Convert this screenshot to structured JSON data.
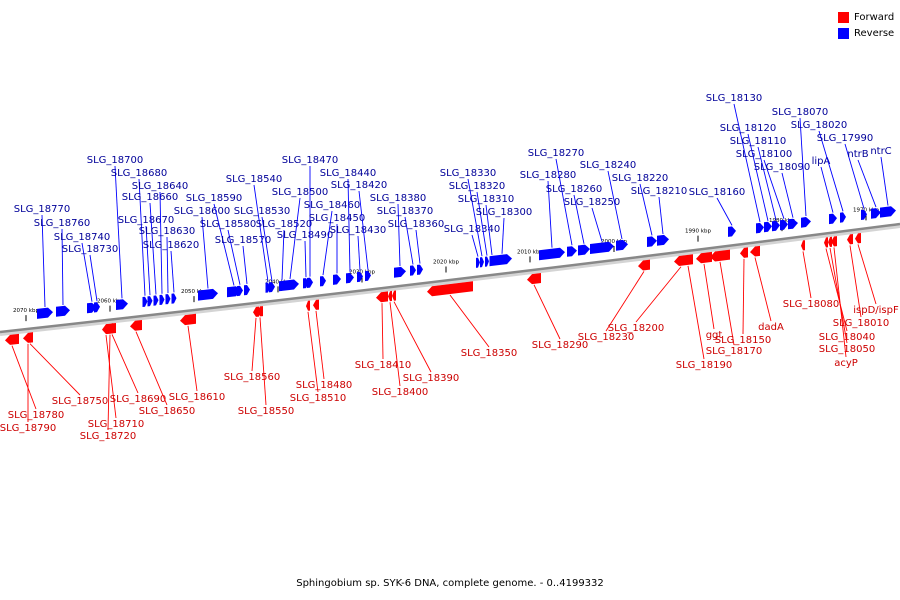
{
  "legend": [
    {
      "label": "Forward",
      "color": "#ff0000"
    },
    {
      "label": "Reverse",
      "color": "#0000ff"
    }
  ],
  "caption": "Sphingobium sp. SYK-6 DNA, complete genome. - 0..4199332",
  "colors": {
    "forward": "#ff0000",
    "reverse": "#0000ff",
    "forward_label": "#cc0000",
    "reverse_label": "#000099",
    "axis": "#888888"
  },
  "scale_ticks": [
    "2070 kbp",
    "2060 kbp",
    "2050 kbp",
    "2040 kbp",
    "2030 kbp",
    "2020 kbp",
    "2010 kbp",
    "2000 kbp",
    "1990 kbp",
    "1980 kbp",
    "1970 kbp"
  ],
  "reverse_genes": [
    "SLG_18770",
    "SLG_18760",
    "SLG_18740",
    "SLG_18730",
    "SLG_18700",
    "SLG_18680",
    "SLG_18670",
    "SLG_18660",
    "SLG_18640",
    "SLG_18630",
    "SLG_18620",
    "SLG_18600",
    "SLG_18590",
    "SLG_18580",
    "SLG_18570",
    "SLG_18540",
    "SLG_18530",
    "SLG_18520",
    "SLG_18500",
    "SLG_18490",
    "SLG_18470",
    "SLG_18460",
    "SLG_18450",
    "SLG_18440",
    "SLG_18430",
    "SLG_18420",
    "SLG_18380",
    "SLG_18370",
    "SLG_18360",
    "SLG_18340",
    "SLG_18330",
    "SLG_18320",
    "SLG_18310",
    "SLG_18300",
    "SLG_18280",
    "SLG_18270",
    "SLG_18260",
    "SLG_18250",
    "SLG_18240",
    "SLG_18220",
    "SLG_18210",
    "SLG_18160",
    "SLG_18130",
    "SLG_18120",
    "SLG_18110",
    "SLG_18100",
    "SLG_18090",
    "SLG_18070",
    "lipA",
    "SLG_18020",
    "SLG_17990",
    "ntrB",
    "ntrC"
  ],
  "forward_genes": [
    "SLG_18780",
    "SLG_18790",
    "SLG_18750",
    "SLG_18710",
    "SLG_18720",
    "SLG_18690",
    "SLG_18650",
    "SLG_18610",
    "SLG_18560",
    "SLG_18550",
    "SLG_18510",
    "SLG_18480",
    "SLG_18410",
    "SLG_18400",
    "SLG_18390",
    "SLG_18350",
    "SLG_18290",
    "SLG_18230",
    "SLG_18200",
    "SLG_18190",
    "ggt",
    "SLG_18170",
    "SLG_18150",
    "dadA",
    "SLG_18080",
    "SLG_18040",
    "SLG_18050",
    "acyP",
    "SLG_18010",
    "ispD/ispF"
  ]
}
